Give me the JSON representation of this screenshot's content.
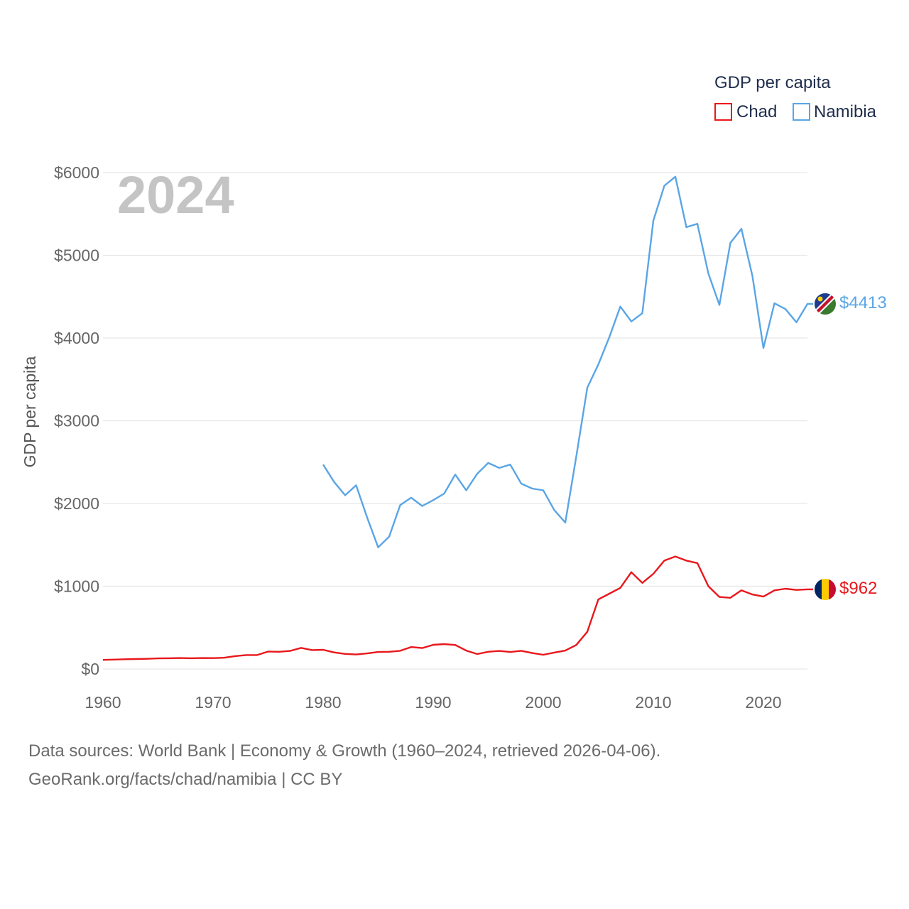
{
  "chart_data": {
    "type": "line",
    "title": "GDP per capita",
    "ylabel": "GDP per capita",
    "xlabel": "",
    "year_label": "2024",
    "xlim": [
      1960,
      2024
    ],
    "ylim": [
      0,
      6000
    ],
    "x_ticks": [
      1960,
      1970,
      1980,
      1990,
      2000,
      2010,
      2020
    ],
    "x_tick_labels": [
      "1960",
      "1970",
      "1980",
      "1990",
      "2000",
      "2010",
      "2020"
    ],
    "y_ticks": [
      0,
      1000,
      2000,
      3000,
      4000,
      5000,
      6000
    ],
    "y_tick_labels": [
      "$0",
      "$1000",
      "$2000",
      "$3000",
      "$4000",
      "$5000",
      "$6000"
    ],
    "grid": true,
    "legend": {
      "title": "GDP per capita",
      "position": "top-right"
    },
    "series": [
      {
        "name": "Chad",
        "color": "#e8171c",
        "flag": "chad-flag",
        "end_label": "$962",
        "start_year": 1960,
        "values": [
          110,
          113,
          118,
          120,
          123,
          128,
          130,
          132,
          130,
          132,
          131,
          136,
          155,
          168,
          168,
          210,
          208,
          218,
          255,
          228,
          232,
          200,
          182,
          175,
          188,
          205,
          208,
          220,
          265,
          252,
          292,
          300,
          290,
          222,
          180,
          208,
          218,
          205,
          220,
          192,
          172,
          198,
          222,
          290,
          450,
          840,
          910,
          980,
          1170,
          1040,
          1150,
          1310,
          1360,
          1310,
          1280,
          1000,
          870,
          860,
          950,
          900,
          875,
          950,
          970,
          955,
          962
        ]
      },
      {
        "name": "Namibia",
        "color": "#5aa5e6",
        "flag": "namibia-flag",
        "end_label": "$4413",
        "start_year": 1980,
        "values": [
          2470,
          2260,
          2100,
          2220,
          1830,
          1470,
          1600,
          1980,
          2070,
          1970,
          2040,
          2120,
          2350,
          2160,
          2360,
          2490,
          2430,
          2470,
          2240,
          2180,
          2160,
          1920,
          1770,
          2570,
          3400,
          3680,
          4010,
          4380,
          4200,
          4300,
          5420,
          5840,
          5950,
          5340,
          5380,
          4780,
          4400,
          5150,
          5320,
          4750,
          3880,
          4420,
          4350,
          4190,
          4413
        ]
      }
    ]
  },
  "footer": {
    "line1": "Data sources: World Bank | Economy & Growth (1960–2024, retrieved 2026-04-06).",
    "line2": "GeoRank.org/facts/chad/namibia | CC BY"
  }
}
